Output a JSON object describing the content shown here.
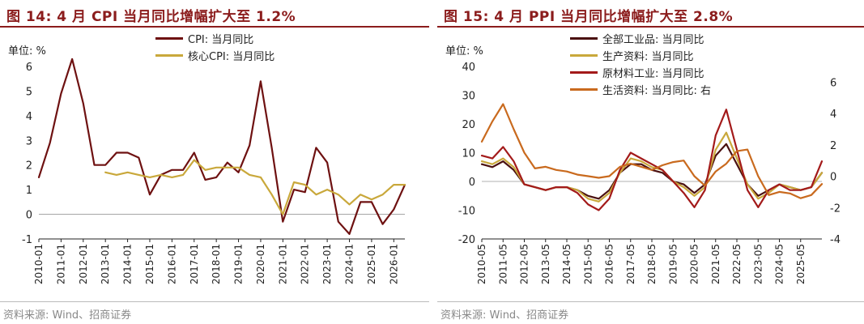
{
  "chart_data": [
    {
      "type": "line",
      "title": "图 14:  4 月 CPI 当月同比增幅扩大至 1.2%",
      "unit": "单位:  %",
      "source": "资料来源:  Wind、招商证券",
      "x": [
        "2010-01",
        "2010-07",
        "2011-01",
        "2011-07",
        "2012-01",
        "2012-07",
        "2013-01",
        "2013-07",
        "2014-01",
        "2014-07",
        "2015-01",
        "2015-07",
        "2016-01",
        "2016-07",
        "2017-01",
        "2017-07",
        "2018-01",
        "2018-07",
        "2019-01",
        "2019-07",
        "2020-01",
        "2020-07",
        "2021-01",
        "2021-07",
        "2022-01",
        "2022-07",
        "2023-01",
        "2023-07",
        "2024-01",
        "2024-07",
        "2025-01",
        "2025-07",
        "2026-01",
        "2026-04"
      ],
      "xticks": [
        "2010-01",
        "2011-01",
        "2012-01",
        "2013-01",
        "2014-01",
        "2015-01",
        "2016-01",
        "2017-01",
        "2018-01",
        "2019-01",
        "2020-01",
        "2021-01",
        "2022-01",
        "2023-01",
        "2024-01",
        "2025-01",
        "2026-01"
      ],
      "ylim": [
        -1,
        6
      ],
      "yticks": [
        "-1",
        "0",
        "1",
        "2",
        "3",
        "4",
        "5",
        "6"
      ],
      "legend": "top-center",
      "series": [
        {
          "name": "CPI: 当月同比",
          "color": "#6e1111",
          "values": [
            1.5,
            2.9,
            4.9,
            6.3,
            4.5,
            2.0,
            2.0,
            2.5,
            2.5,
            2.3,
            0.8,
            1.6,
            1.8,
            1.8,
            2.5,
            1.4,
            1.5,
            2.1,
            1.7,
            2.8,
            5.4,
            2.7,
            -0.3,
            1.0,
            0.9,
            2.7,
            2.1,
            -0.3,
            -0.8,
            0.5,
            0.5,
            -0.4,
            0.2,
            1.2
          ]
        },
        {
          "name": "核心CPI: 当月同比",
          "color": "#c9a83b",
          "values": [
            null,
            null,
            null,
            null,
            null,
            null,
            1.7,
            1.6,
            1.7,
            1.6,
            1.5,
            1.6,
            1.5,
            1.6,
            2.2,
            1.8,
            1.9,
            1.9,
            1.9,
            1.6,
            1.5,
            0.8,
            0.0,
            1.3,
            1.2,
            0.8,
            1.0,
            0.8,
            0.4,
            0.8,
            0.6,
            0.8,
            1.2,
            1.2
          ]
        }
      ]
    },
    {
      "type": "line",
      "title": "图 15:  4 月 PPI 当月同比增幅扩大至 2.8%",
      "unit": "单位:  %",
      "source": "资料来源:  Wind、招商证券",
      "x": [
        "2010-05",
        "2010-11",
        "2011-05",
        "2011-11",
        "2012-05",
        "2012-11",
        "2013-05",
        "2013-11",
        "2014-05",
        "2014-11",
        "2015-05",
        "2015-11",
        "2016-05",
        "2016-11",
        "2017-05",
        "2017-11",
        "2018-05",
        "2018-11",
        "2019-05",
        "2019-11",
        "2020-05",
        "2020-11",
        "2021-05",
        "2021-11",
        "2022-05",
        "2022-11",
        "2023-05",
        "2023-11",
        "2024-05",
        "2024-11",
        "2025-05",
        "2025-11",
        "2026-04"
      ],
      "xticks": [
        "2010-05",
        "2011-05",
        "2012-05",
        "2013-05",
        "2014-05",
        "2015-05",
        "2016-05",
        "2017-05",
        "2018-05",
        "2019-05",
        "2020-05",
        "2021-05",
        "2022-05",
        "2023-05",
        "2024-05",
        "2025-05"
      ],
      "ylim": [
        -20,
        40
      ],
      "yticks": [
        "-20",
        "-10",
        "0",
        "10",
        "20",
        "30",
        "40"
      ],
      "y2lim": [
        -4,
        7
      ],
      "y2ticks": [
        "-4",
        "-2",
        "0",
        "2",
        "4",
        "6"
      ],
      "legend": "top-center",
      "series": [
        {
          "name": "全部工业品: 当月同比",
          "color": "#4a1010",
          "axis": "left",
          "values": [
            6,
            5,
            7,
            4,
            -1,
            -2,
            -3,
            -2,
            -2,
            -3,
            -5,
            -6,
            -3,
            3,
            6,
            6,
            4,
            3,
            0,
            -1,
            -4,
            -1,
            9,
            13,
            6,
            -1,
            -5,
            -3,
            -1,
            -2,
            -3,
            -2,
            3
          ]
        },
        {
          "name": "生产资料: 当月同比",
          "color": "#c9a83b",
          "axis": "left",
          "values": [
            7,
            6,
            8,
            5,
            -1,
            -2,
            -3,
            -2,
            -2,
            -3,
            -6,
            -7,
            -4,
            3,
            8,
            7,
            5,
            4,
            0,
            -2,
            -5,
            -2,
            11,
            17,
            8,
            -1,
            -6,
            -4,
            -1,
            -2,
            -3,
            -2,
            3
          ]
        },
        {
          "name": "原材料工业: 当月同比",
          "color": "#a31a1a",
          "axis": "left",
          "values": [
            9,
            8,
            12,
            7,
            -1,
            -2,
            -3,
            -2,
            -2,
            -4,
            -8,
            -10,
            -6,
            4,
            10,
            8,
            6,
            4,
            0,
            -4,
            -9,
            -3,
            16,
            25,
            11,
            -3,
            -9,
            -3,
            -1,
            -3,
            -3,
            -2,
            7
          ]
        },
        {
          "name": "生活资料: 当月同比:  右",
          "color": "#c96a1e",
          "axis": "right",
          "values": [
            2.2,
            3.5,
            4.6,
            3.0,
            1.5,
            0.5,
            0.6,
            0.4,
            0.3,
            0.1,
            0.0,
            -0.1,
            0.0,
            0.6,
            0.8,
            0.6,
            0.4,
            0.7,
            0.9,
            1.0,
            0.0,
            -0.6,
            0.3,
            0.8,
            1.6,
            1.7,
            0.0,
            -1.2,
            -1.0,
            -1.1,
            -1.4,
            -1.2,
            -0.5
          ]
        }
      ]
    }
  ]
}
